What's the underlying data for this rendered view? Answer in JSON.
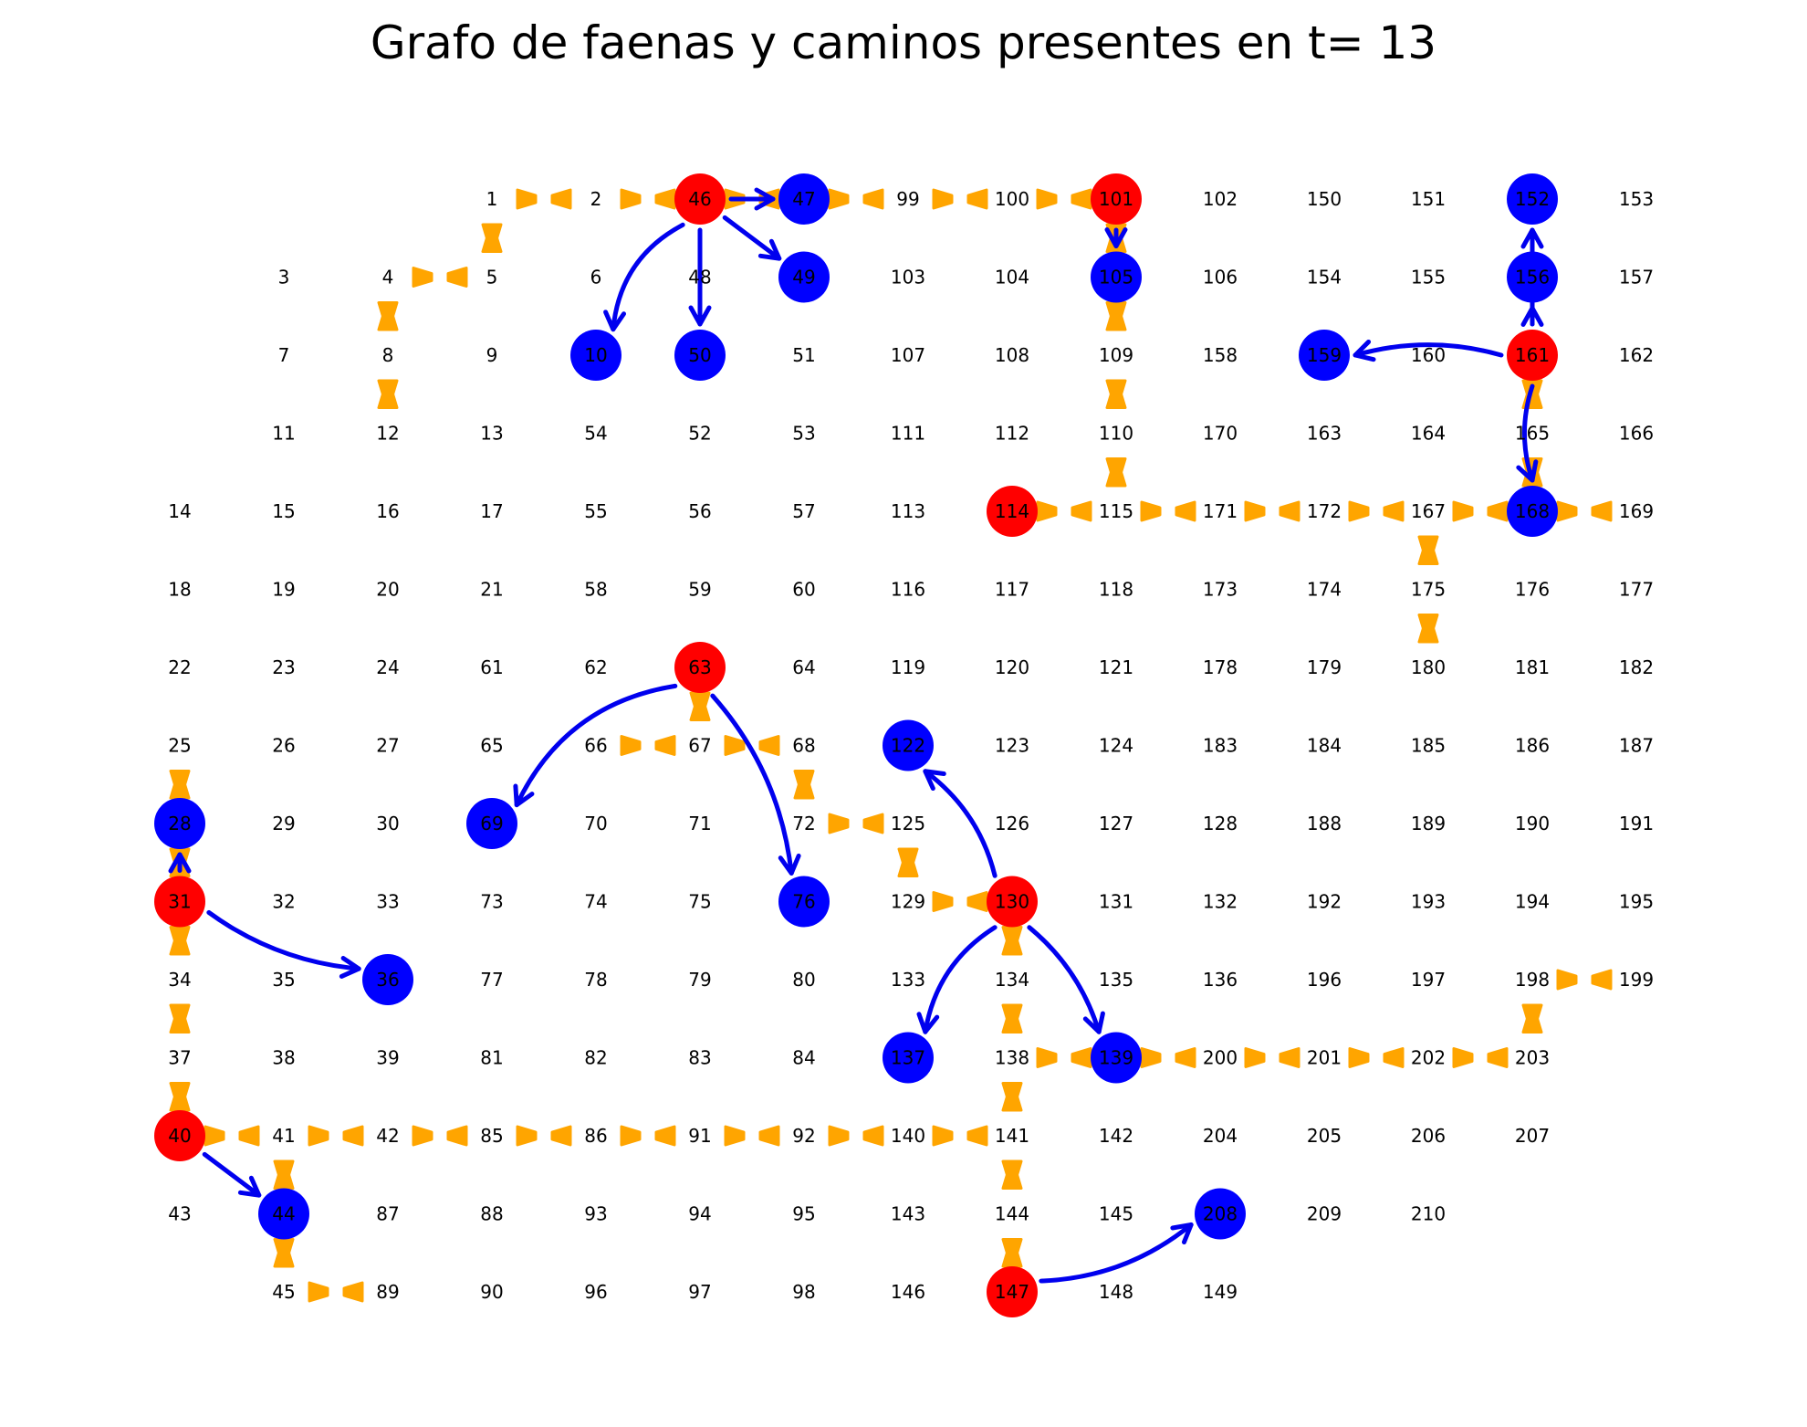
{
  "title": "Grafo de faenas y caminos presentes en t= 13",
  "colors": {
    "faena_origen": "#ff0000",
    "faena_destino": "#0000ff",
    "camino": "#ffa500",
    "flecha": "#0000ee",
    "texto": "#000000"
  },
  "rows": [
    [
      null,
      null,
      null,
      "1",
      "2",
      "46",
      "47",
      "99",
      "100",
      "101",
      "102",
      "150",
      "151",
      "152",
      "153"
    ],
    [
      null,
      "3",
      "4",
      "5",
      "6",
      "48",
      "49",
      "103",
      "104",
      "105",
      "106",
      "154",
      "155",
      "156",
      "157"
    ],
    [
      null,
      "7",
      "8",
      "9",
      "10",
      "50",
      "51",
      "107",
      "108",
      "109",
      "158",
      "159",
      "160",
      "161",
      "162"
    ],
    [
      null,
      "11",
      "12",
      "13",
      "54",
      "52",
      "53",
      "111",
      "112",
      "110",
      "170",
      "163",
      "164",
      "165",
      "166"
    ],
    [
      "14",
      "15",
      "16",
      "17",
      "55",
      "56",
      "57",
      "113",
      "114",
      "115",
      "171",
      "172",
      "167",
      "168",
      "169"
    ],
    [
      "18",
      "19",
      "20",
      "21",
      "58",
      "59",
      "60",
      "116",
      "117",
      "118",
      "173",
      "174",
      "175",
      "176",
      "177"
    ],
    [
      "22",
      "23",
      "24",
      "61",
      "62",
      "63",
      "64",
      "119",
      "120",
      "121",
      "178",
      "179",
      "180",
      "181",
      "182"
    ],
    [
      "25",
      "26",
      "27",
      "65",
      "66",
      "67",
      "68",
      "122",
      "123",
      "124",
      "183",
      "184",
      "185",
      "186",
      "187"
    ],
    [
      "28",
      "29",
      "30",
      "69",
      "70",
      "71",
      "72",
      "125",
      "126",
      "127",
      "128",
      "188",
      "189",
      "190",
      "191"
    ],
    [
      "31",
      "32",
      "33",
      "73",
      "74",
      "75",
      "76",
      "129",
      "130",
      "131",
      "132",
      "192",
      "193",
      "194",
      "195"
    ],
    [
      "34",
      "35",
      "36",
      "77",
      "78",
      "79",
      "80",
      "133",
      "134",
      "135",
      "136",
      "196",
      "197",
      "198",
      "199"
    ],
    [
      "37",
      "38",
      "39",
      "81",
      "82",
      "83",
      "84",
      "137",
      "138",
      "139",
      "200",
      "201",
      "202",
      "203",
      null
    ],
    [
      "40",
      "41",
      "42",
      "85",
      "86",
      "91",
      "92",
      "140",
      "141",
      "142",
      "204",
      "205",
      "206",
      "207",
      null
    ],
    [
      "43",
      "44",
      "87",
      "88",
      "93",
      "94",
      "95",
      "143",
      "144",
      "145",
      "208",
      "209",
      "210",
      null,
      null
    ],
    [
      null,
      "45",
      "89",
      "90",
      "96",
      "97",
      "98",
      "146",
      "147",
      "148",
      "149",
      null,
      null,
      null,
      null
    ]
  ],
  "faenas_origen": [
    "46",
    "101",
    "161",
    "114",
    "63",
    "31",
    "130",
    "40",
    "147"
  ],
  "faenas_destino": [
    "47",
    "49",
    "10",
    "50",
    "105",
    "152",
    "156",
    "159",
    "168",
    "28",
    "69",
    "122",
    "76",
    "36",
    "137",
    "139",
    "44",
    "208"
  ],
  "caminos": [
    [
      "1",
      "2"
    ],
    [
      "2",
      "46"
    ],
    [
      "46",
      "47"
    ],
    [
      "47",
      "99"
    ],
    [
      "99",
      "100"
    ],
    [
      "100",
      "101"
    ],
    [
      "1",
      "5"
    ],
    [
      "4",
      "5"
    ],
    [
      "4",
      "8"
    ],
    [
      "8",
      "12"
    ],
    [
      "101",
      "105"
    ],
    [
      "105",
      "109"
    ],
    [
      "109",
      "110"
    ],
    [
      "110",
      "115"
    ],
    [
      "114",
      "115"
    ],
    [
      "115",
      "171"
    ],
    [
      "171",
      "172"
    ],
    [
      "172",
      "167"
    ],
    [
      "167",
      "168"
    ],
    [
      "168",
      "169"
    ],
    [
      "161",
      "165"
    ],
    [
      "165",
      "168"
    ],
    [
      "167",
      "175"
    ],
    [
      "175",
      "180"
    ],
    [
      "63",
      "67"
    ],
    [
      "66",
      "67"
    ],
    [
      "67",
      "68"
    ],
    [
      "68",
      "72"
    ],
    [
      "72",
      "125"
    ],
    [
      "125",
      "129"
    ],
    [
      "129",
      "130"
    ],
    [
      "25",
      "28"
    ],
    [
      "28",
      "31"
    ],
    [
      "31",
      "34"
    ],
    [
      "34",
      "37"
    ],
    [
      "37",
      "40"
    ],
    [
      "40",
      "41"
    ],
    [
      "41",
      "42"
    ],
    [
      "42",
      "85"
    ],
    [
      "85",
      "86"
    ],
    [
      "86",
      "91"
    ],
    [
      "91",
      "92"
    ],
    [
      "92",
      "140"
    ],
    [
      "140",
      "141"
    ],
    [
      "41",
      "44"
    ],
    [
      "44",
      "45"
    ],
    [
      "45",
      "89"
    ],
    [
      "130",
      "134"
    ],
    [
      "134",
      "138"
    ],
    [
      "138",
      "141"
    ],
    [
      "141",
      "144"
    ],
    [
      "144",
      "147"
    ],
    [
      "138",
      "139"
    ],
    [
      "139",
      "200"
    ],
    [
      "200",
      "201"
    ],
    [
      "201",
      "202"
    ],
    [
      "202",
      "203"
    ],
    [
      "203",
      "198"
    ],
    [
      "198",
      "199"
    ]
  ],
  "envios": [
    {
      "from": "46",
      "to": "10",
      "curve": 0.18
    },
    {
      "from": "46",
      "to": "50",
      "curve": 0.0
    },
    {
      "from": "46",
      "to": "49",
      "curve": 0.0
    },
    {
      "from": "46",
      "to": "47",
      "curve": 0.0
    },
    {
      "from": "101",
      "to": "105",
      "curve": 0.0
    },
    {
      "from": "161",
      "to": "159",
      "curve": 0.1
    },
    {
      "from": "161",
      "to": "156",
      "curve": 0.0
    },
    {
      "from": "161",
      "to": "152",
      "curve": 0.0
    },
    {
      "from": "161",
      "to": "168",
      "curve": 0.1
    },
    {
      "from": "63",
      "to": "69",
      "curve": 0.2
    },
    {
      "from": "63",
      "to": "76",
      "curve": -0.12
    },
    {
      "from": "31",
      "to": "28",
      "curve": 0.0
    },
    {
      "from": "31",
      "to": "36",
      "curve": 0.1
    },
    {
      "from": "130",
      "to": "122",
      "curve": 0.12
    },
    {
      "from": "130",
      "to": "137",
      "curve": 0.15
    },
    {
      "from": "130",
      "to": "139",
      "curve": -0.1
    },
    {
      "from": "40",
      "to": "44",
      "curve": 0.0
    },
    {
      "from": "147",
      "to": "208",
      "curve": 0.12
    }
  ]
}
